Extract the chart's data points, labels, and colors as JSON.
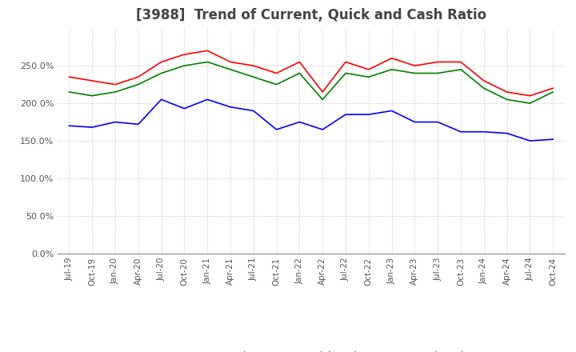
{
  "title": "[3988]  Trend of Current, Quick and Cash Ratio",
  "title_fontsize": 12,
  "x_labels": [
    "Jul-19",
    "Oct-19",
    "Jan-20",
    "Apr-20",
    "Jul-20",
    "Oct-20",
    "Jan-21",
    "Apr-21",
    "Jul-21",
    "Oct-21",
    "Jan-22",
    "Apr-22",
    "Jul-22",
    "Oct-22",
    "Jan-23",
    "Apr-23",
    "Jul-23",
    "Oct-23",
    "Jan-24",
    "Apr-24",
    "Jul-24",
    "Oct-24"
  ],
  "current_ratio": [
    235,
    230,
    225,
    235,
    255,
    265,
    270,
    255,
    250,
    240,
    255,
    215,
    255,
    245,
    260,
    250,
    255,
    255,
    230,
    215,
    210,
    220
  ],
  "quick_ratio": [
    215,
    210,
    215,
    225,
    240,
    250,
    255,
    245,
    235,
    225,
    240,
    205,
    240,
    235,
    245,
    240,
    240,
    245,
    220,
    205,
    200,
    215
  ],
  "cash_ratio": [
    170,
    168,
    175,
    172,
    205,
    193,
    205,
    195,
    190,
    165,
    175,
    165,
    185,
    185,
    190,
    175,
    175,
    162,
    162,
    160,
    150,
    152
  ],
  "current_color": "#FF0000",
  "quick_color": "#008000",
  "cash_color": "#0000FF",
  "ylim": [
    0,
    300
  ],
  "yticks": [
    0,
    50,
    100,
    150,
    200,
    250
  ],
  "background_color": "#FFFFFF",
  "grid_color": "#AAAAAA",
  "legend_labels": [
    "Current Ratio",
    "Quick Ratio",
    "Cash Ratio"
  ]
}
